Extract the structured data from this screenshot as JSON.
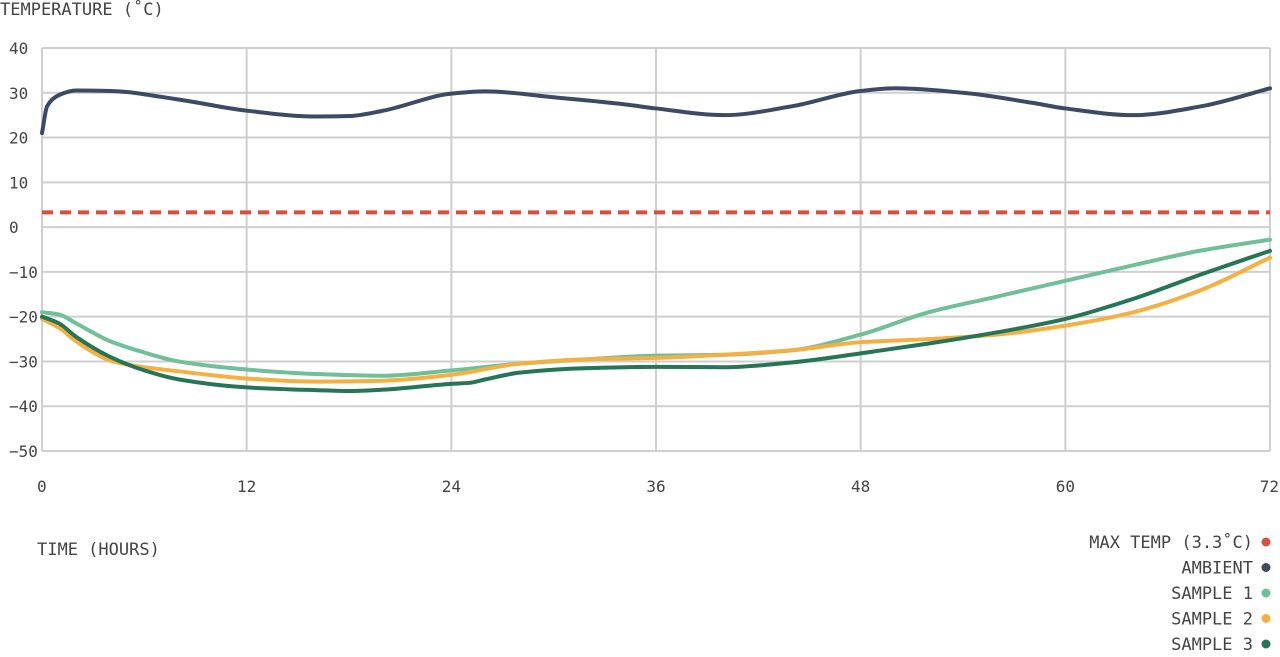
{
  "chart_data": {
    "type": "line",
    "title": "",
    "ylabel": "TEMPERATURE (˚C)",
    "xlabel": "TIME (HOURS)",
    "xlim": [
      0,
      72
    ],
    "ylim": [
      -50,
      40
    ],
    "x_ticks": [
      "0",
      "12",
      "24",
      "36",
      "48",
      "60",
      "72"
    ],
    "y_ticks": [
      "40",
      "30",
      "20",
      "10",
      "0",
      "−10",
      "−20",
      "−30",
      "−40",
      "−50"
    ],
    "grid": true,
    "legend_position": "bottom-right",
    "reference_lines": [
      {
        "name": "MAX TEMP (3.3˚C)",
        "y": 3.3,
        "color": "#d6503e",
        "style": "dashed"
      }
    ],
    "series": [
      {
        "name": "AMBIENT",
        "color": "#3c4a63",
        "x": [
          0,
          0.3,
          1,
          2,
          4,
          8,
          12,
          16,
          18,
          20,
          24,
          26,
          30,
          34,
          36,
          40,
          44,
          48,
          50,
          54,
          58,
          60,
          64,
          68,
          72
        ],
        "y": [
          21,
          27,
          29.5,
          30.5,
          30.4,
          28.5,
          26,
          24.7,
          24.8,
          26,
          29.8,
          30.3,
          29,
          27.5,
          26.5,
          25,
          27,
          30.4,
          31,
          30,
          27.8,
          26.5,
          25,
          27,
          31
        ]
      },
      {
        "name": "SAMPLE 1",
        "color": "#6fbf99",
        "x": [
          0,
          1,
          2,
          4,
          6,
          8,
          12,
          16,
          20,
          24,
          28,
          32,
          36,
          40,
          44,
          48,
          52,
          56,
          60,
          64,
          68,
          72
        ],
        "y": [
          -19,
          -19.5,
          -21.5,
          -25.5,
          -28,
          -30,
          -31.8,
          -32.8,
          -33.2,
          -32,
          -30.5,
          -29.5,
          -28.7,
          -28.5,
          -27.5,
          -24,
          -19,
          -15.5,
          -12,
          -8.5,
          -5.2,
          -2.8
        ]
      },
      {
        "name": "SAMPLE 2",
        "color": "#f5b041",
        "x": [
          0,
          1,
          2,
          3,
          4,
          6,
          8,
          12,
          16,
          20,
          24,
          28,
          32,
          36,
          40,
          44,
          48,
          52,
          56,
          60,
          64,
          68,
          72
        ],
        "y": [
          -20.5,
          -22.5,
          -25.5,
          -28,
          -29.8,
          -31.3,
          -32.2,
          -33.8,
          -34.5,
          -34.3,
          -33,
          -30.5,
          -29.5,
          -29.2,
          -28.5,
          -27.5,
          -25.7,
          -25,
          -24,
          -22,
          -19,
          -14,
          -6.8
        ]
      },
      {
        "name": "SAMPLE 3",
        "color": "#267556",
        "x": [
          0,
          1,
          2,
          4,
          6,
          8,
          12,
          16,
          18,
          20,
          24,
          25,
          26,
          28,
          32,
          36,
          40,
          44,
          48,
          52,
          56,
          60,
          64,
          68,
          72
        ],
        "y": [
          -20,
          -21.5,
          -24.5,
          -29,
          -32,
          -34,
          -35.8,
          -36.4,
          -36.6,
          -36.3,
          -35,
          -34.8,
          -34,
          -32.5,
          -31.5,
          -31.2,
          -31.3,
          -30.2,
          -28.2,
          -26,
          -23.5,
          -20.5,
          -16,
          -10.5,
          -5.3
        ]
      }
    ]
  }
}
